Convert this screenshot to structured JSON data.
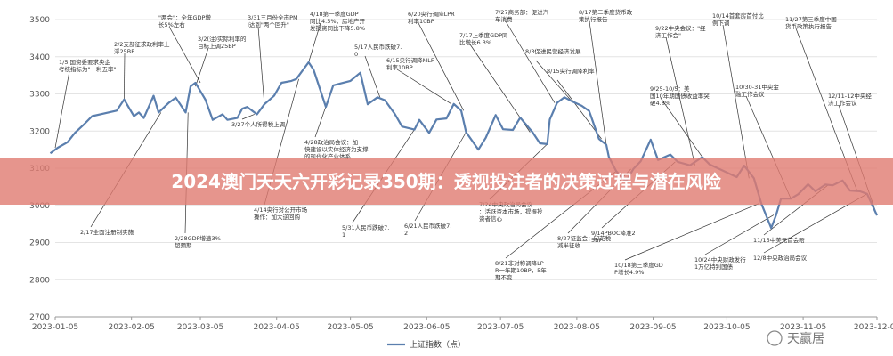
{
  "banner": {
    "title": "2024澳门天天六开彩记录350期：透视投注者的决策过程与潜在风险"
  },
  "watermark": {
    "text": "天赢居"
  },
  "chart_data": {
    "type": "line",
    "ylim": [
      2700,
      3500
    ],
    "yticks": [
      2700,
      2800,
      2900,
      3000,
      3100,
      3200,
      3300,
      3400,
      3500
    ],
    "xticks": [
      "2023-01-05",
      "2023-02-05",
      "2023-03-05",
      "2023-04-05",
      "2023-05-05",
      "2023-06-05",
      "2023-07-05",
      "2023-08-05",
      "2023-09-05",
      "2023-10-05",
      "2023-11-05",
      "2023-12-05"
    ],
    "series": [
      {
        "name": "上证指数（点）",
        "color": "#5b7fae",
        "points": [
          [
            "2023-01-03",
            3140
          ],
          [
            "2023-01-06",
            3155
          ],
          [
            "2023-01-10",
            3170
          ],
          [
            "2023-01-13",
            3195
          ],
          [
            "2023-01-17",
            3220
          ],
          [
            "2023-01-20",
            3240
          ],
          [
            "2023-01-30",
            3255
          ],
          [
            "2023-02-02",
            3285
          ],
          [
            "2023-02-06",
            3240
          ],
          [
            "2023-02-08",
            3250
          ],
          [
            "2023-02-10",
            3235
          ],
          [
            "2023-02-14",
            3295
          ],
          [
            "2023-02-16",
            3250
          ],
          [
            "2023-02-20",
            3275
          ],
          [
            "2023-02-23",
            3290
          ],
          [
            "2023-02-27",
            3250
          ],
          [
            "2023-03-01",
            3320
          ],
          [
            "2023-03-03",
            3330
          ],
          [
            "2023-03-07",
            3285
          ],
          [
            "2023-03-10",
            3230
          ],
          [
            "2023-03-14",
            3245
          ],
          [
            "2023-03-16",
            3230
          ],
          [
            "2023-03-20",
            3235
          ],
          [
            "2023-03-22",
            3260
          ],
          [
            "2023-03-24",
            3265
          ],
          [
            "2023-03-28",
            3245
          ],
          [
            "2023-03-31",
            3272
          ],
          [
            "2023-04-04",
            3295
          ],
          [
            "2023-04-07",
            3330
          ],
          [
            "2023-04-11",
            3335
          ],
          [
            "2023-04-13",
            3340
          ],
          [
            "2023-04-18",
            3385
          ],
          [
            "2023-04-20",
            3365
          ],
          [
            "2023-04-25",
            3265
          ],
          [
            "2023-04-28",
            3323
          ],
          [
            "2023-05-05",
            3335
          ],
          [
            "2023-05-09",
            3357
          ],
          [
            "2023-05-12",
            3272
          ],
          [
            "2023-05-16",
            3291
          ],
          [
            "2023-05-19",
            3283
          ],
          [
            "2023-05-23",
            3246
          ],
          [
            "2023-05-26",
            3212
          ],
          [
            "2023-05-31",
            3204
          ],
          [
            "2023-06-02",
            3230
          ],
          [
            "2023-06-06",
            3195
          ],
          [
            "2023-06-09",
            3231
          ],
          [
            "2023-06-13",
            3234
          ],
          [
            "2023-06-16",
            3273
          ],
          [
            "2023-06-19",
            3255
          ],
          [
            "2023-06-21",
            3197
          ],
          [
            "2023-06-26",
            3150
          ],
          [
            "2023-06-29",
            3182
          ],
          [
            "2023-07-03",
            3243
          ],
          [
            "2023-07-06",
            3205
          ],
          [
            "2023-07-10",
            3203
          ],
          [
            "2023-07-13",
            3236
          ],
          [
            "2023-07-18",
            3197
          ],
          [
            "2023-07-21",
            3167
          ],
          [
            "2023-07-24",
            3165
          ],
          [
            "2023-07-25",
            3231
          ],
          [
            "2023-07-28",
            3276
          ],
          [
            "2023-07-31",
            3291
          ],
          [
            "2023-08-03",
            3280
          ],
          [
            "2023-08-07",
            3268
          ],
          [
            "2023-08-10",
            3254
          ],
          [
            "2023-08-14",
            3179
          ],
          [
            "2023-08-17",
            3163
          ],
          [
            "2023-08-18",
            3131
          ],
          [
            "2023-08-21",
            3092
          ],
          [
            "2023-08-25",
            3064
          ],
          [
            "2023-08-28",
            3098
          ],
          [
            "2023-08-31",
            3119
          ],
          [
            "2023-09-04",
            3177
          ],
          [
            "2023-09-07",
            3122
          ],
          [
            "2023-09-12",
            3137
          ],
          [
            "2023-09-15",
            3117
          ],
          [
            "2023-09-20",
            3108
          ],
          [
            "2023-09-25",
            3130
          ],
          [
            "2023-09-28",
            3110
          ],
          [
            "2023-10-09",
            3076
          ],
          [
            "2023-10-12",
            3107
          ],
          [
            "2023-10-16",
            3073
          ],
          [
            "2023-10-19",
            3005
          ],
          [
            "2023-10-23",
            2939
          ],
          [
            "2023-10-25",
            2974
          ],
          [
            "2023-10-27",
            3018
          ],
          [
            "2023-10-31",
            3018
          ],
          [
            "2023-11-03",
            3030
          ],
          [
            "2023-11-07",
            3057
          ],
          [
            "2023-11-10",
            3038
          ],
          [
            "2023-11-14",
            3056
          ],
          [
            "2023-11-17",
            3054
          ],
          [
            "2023-11-21",
            3067
          ],
          [
            "2023-11-24",
            3040
          ],
          [
            "2023-11-28",
            3038
          ],
          [
            "2023-12-01",
            3031
          ],
          [
            "2023-12-05",
            2973
          ]
        ]
      }
    ],
    "annotations": [
      "1/5 国资委要求央企考核指标为\"一利五率\"",
      "2/17全面注册制实施",
      "2/28GDP增速3%超预期",
      "\"两会\"：全年GDP增长5%左右",
      "2/2支部征求政利率上浮25BP",
      "3/2(注)实际利率的目标上调25BP",
      "3/31三月份全市PMI达到\"两个回升\"",
      "3/27个人所得税上调",
      "4/14央行对公开市场操作：加大逆回购",
      "4/18第一季度GDP同比4.5%，房地产开发投资同比下降5.8%",
      "5/17人民币跌破7.0",
      "4/28政治局会议：加快建设以实体经济为支撑的现代化产业体系",
      "5/31人民币跌破7.1",
      "6/15央行调降MLF利率10BP",
      "6/20央行调降LPR利率10BP",
      "6/21人民币跌破7.2",
      "7/17上季度GDP同比增长6.3%",
      "7/24中央政治局会议：活跃资本市场，提振投资者信心",
      "7/27商务部：促进汽车消费",
      "8/3促进民营经济发展",
      "8/15央行调降利率",
      "8/17第二季度货币政策执行报告",
      "8/21非对称调降LPR一年期10BP，5年期不变",
      "8/27证监会：印花税减半征收",
      "9/14PBOC降准25BP",
      "9/22中央会议：\"经济工作会\"",
      "9/25-10/5：美国10年期国债收益率突破4.8%",
      "10/14首套房首付比例下调",
      "10/18第三季度GDP增长4.9%",
      "10/24中央财政发行1万亿特别国债",
      "10/30-31中央金融工作会议",
      "11/15中美元首会晤",
      "11/27第三季度中国货币政策执行报告",
      "12/8中央政治局会议",
      "12/11-12中央经济工作会议"
    ],
    "legend": {
      "position": "bottom-center"
    }
  }
}
